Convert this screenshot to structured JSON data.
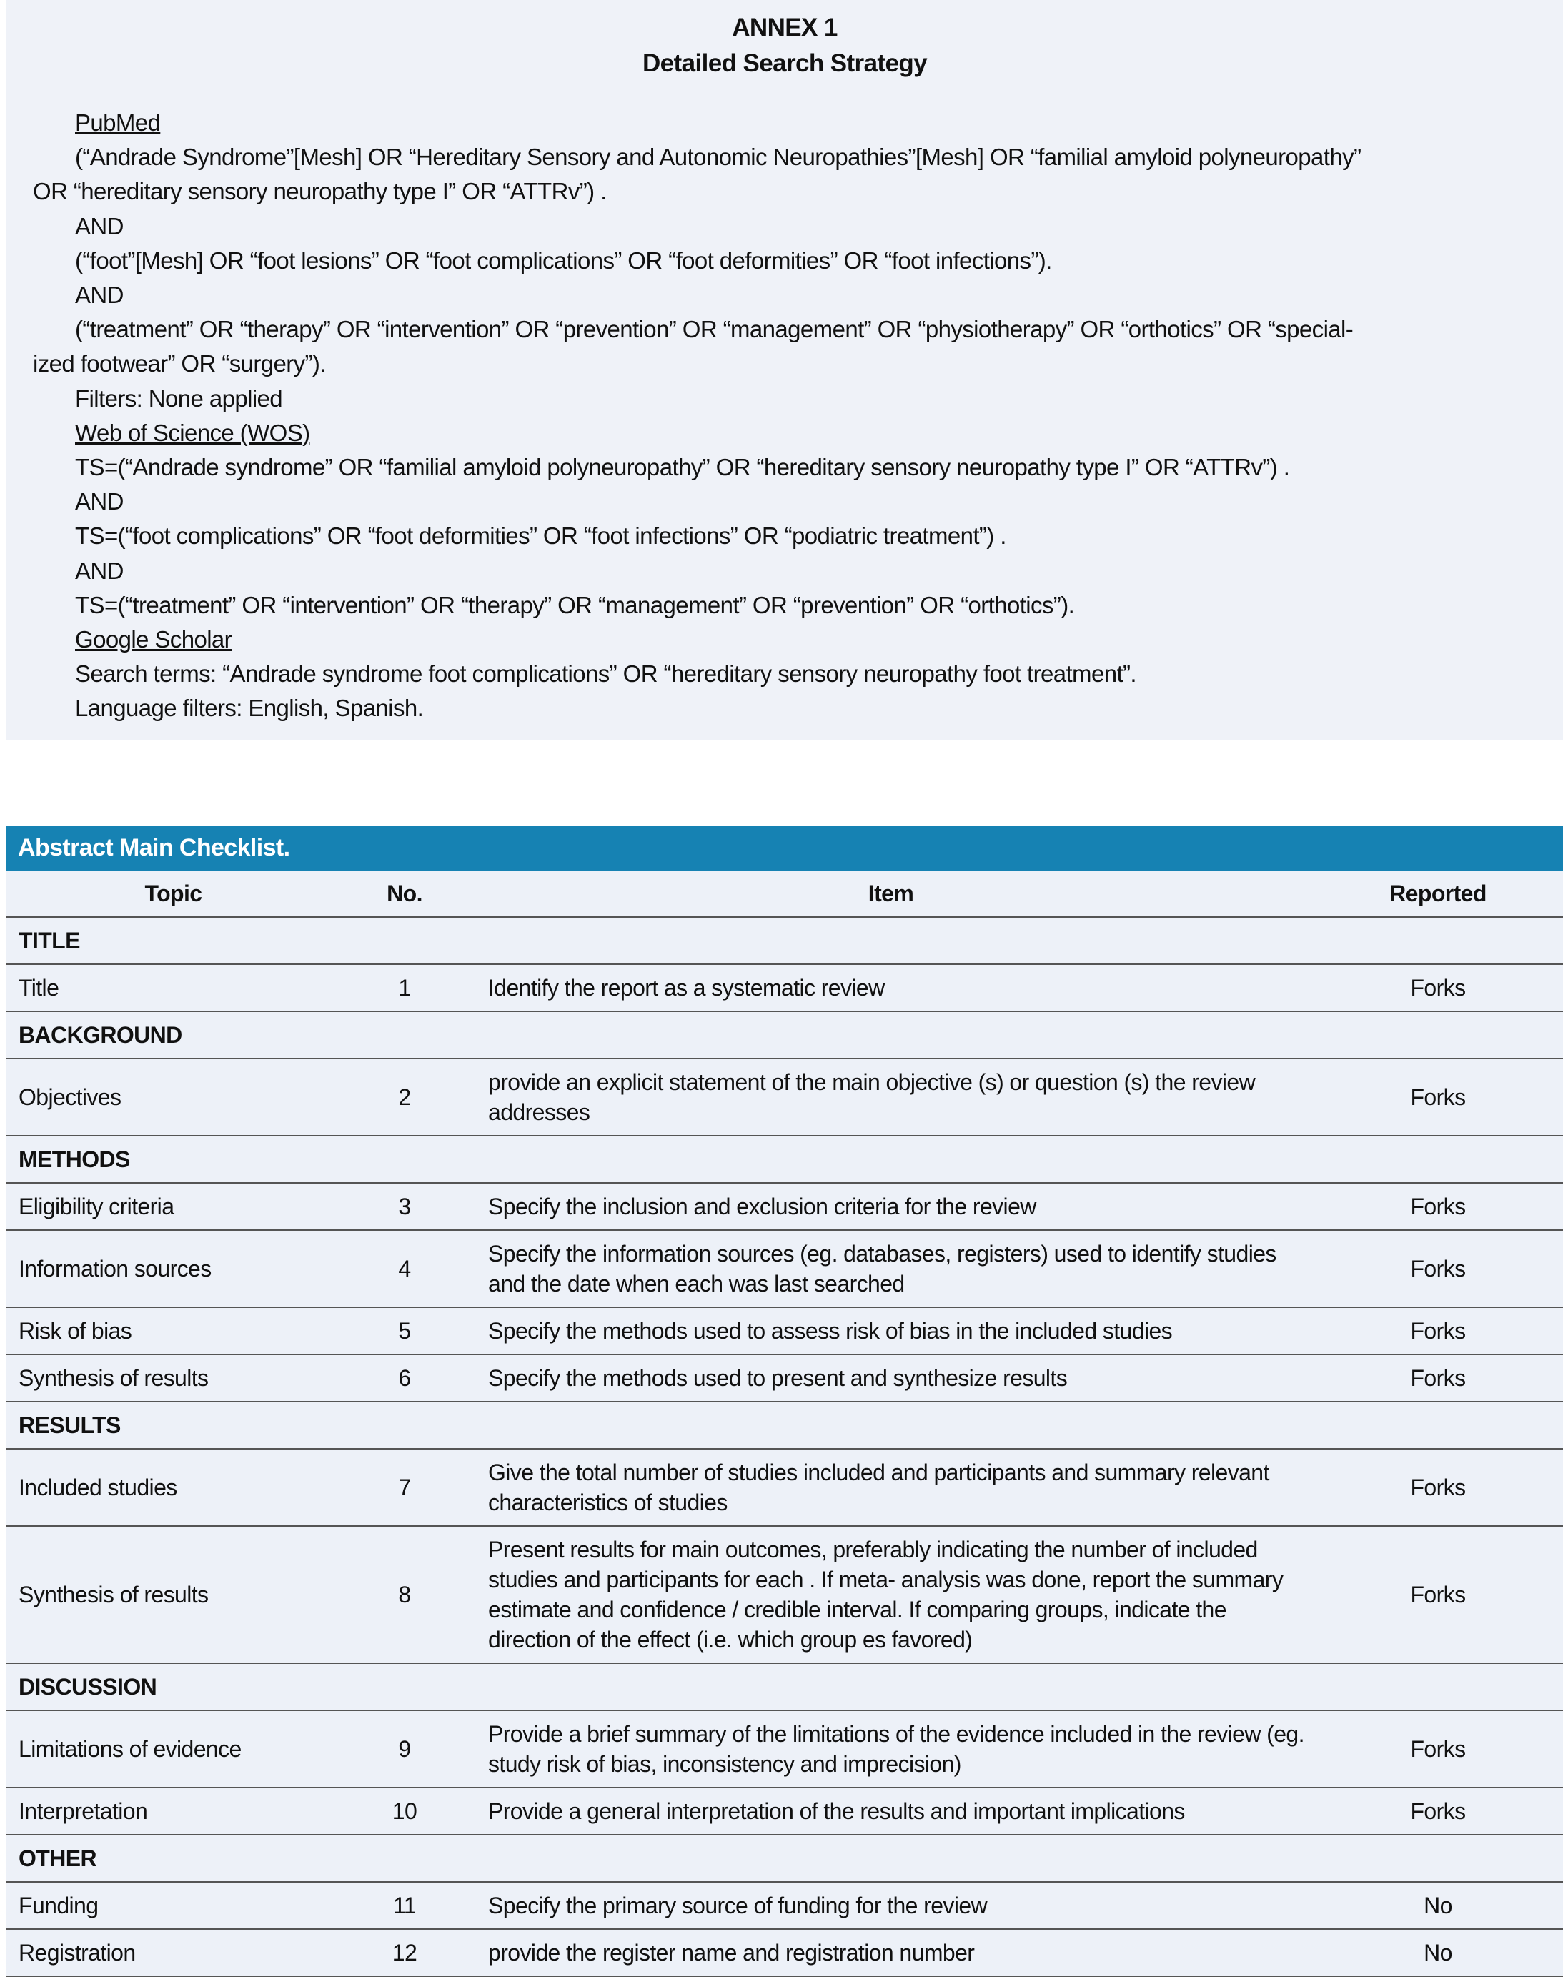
{
  "annex": {
    "title": "ANNEX 1",
    "subtitle": "Detailed Search Strategy",
    "lines": [
      {
        "t": "PubMed",
        "u": true
      },
      {
        "t": "(“Andrade Syndrome”[Mesh] OR “Hereditary Sensory and Autonomic Neuropathies”[Mesh] OR “familial amyloid polyneuropathy”"
      },
      {
        "t": "OR “hereditary sensory neuropathy type I” OR “ATTRv”) .",
        "c": true
      },
      {
        "t": "AND"
      },
      {
        "t": "(“foot”[Mesh] OR “foot lesions” OR “foot complications” OR “foot deformities” OR “foot infections”)."
      },
      {
        "t": "AND"
      },
      {
        "t": "(“treatment” OR “therapy” OR “intervention” OR “prevention” OR “management” OR “physiotherapy” OR “orthotics” OR “special-"
      },
      {
        "t": "ized footwear” OR “surgery”).",
        "c": true
      },
      {
        "t": "Filters: None applied"
      },
      {
        "t": "Web of Science (WOS)",
        "u": true
      },
      {
        "t": "TS=(“Andrade syndrome” OR “familial amyloid polyneuropathy” OR “hereditary sensory neuropathy type I” OR “ATTRv”) ."
      },
      {
        "t": "AND"
      },
      {
        "t": "TS=(“foot complications” OR “foot deformities” OR “foot infections” OR “podiatric treatment”) ."
      },
      {
        "t": "AND"
      },
      {
        "t": "TS=(“treatment” OR “intervention” OR “therapy” OR “management” OR “prevention” OR “orthotics”)."
      },
      {
        "t": "Google Scholar",
        "u": true
      },
      {
        "t": "Search terms: “Andrade syndrome foot complications” OR “hereditary sensory neuropathy foot treatment”."
      },
      {
        "t": "Language filters: English, Spanish."
      }
    ]
  },
  "checklist": {
    "caption": "Abstract Main Checklist.",
    "header_color": "#1682b3",
    "columns": [
      "Topic",
      "No.",
      "Item",
      "Reported"
    ],
    "rows": [
      {
        "section": "TITLE"
      },
      {
        "topic": "Title",
        "no": "1",
        "item": "Identify the report as a systematic review",
        "rep": "Forks"
      },
      {
        "section": "BACKGROUND"
      },
      {
        "topic": "Objectives",
        "no": "2",
        "item": "provide an explicit statement of the main objective (s) or question (s) the review addresses",
        "rep": "Forks"
      },
      {
        "section": "METHODS"
      },
      {
        "topic": "Eligibility criteria",
        "no": "3",
        "item": "Specify the inclusion and exclusion criteria for the review",
        "rep": "Forks"
      },
      {
        "topic": "Information sources",
        "no": "4",
        "item": "Specify the information sources (eg. databases, registers) used to identify studies and the date when each was last searched",
        "rep": "Forks"
      },
      {
        "topic": "Risk of bias",
        "no": "5",
        "item": "Specify the methods used to assess risk of bias in the included studies",
        "rep": "Forks"
      },
      {
        "topic": "Synthesis of results",
        "no": "6",
        "item": "Specify the methods used to present and synthesize results",
        "rep": "Forks"
      },
      {
        "section": "RESULTS"
      },
      {
        "topic": "Included studies",
        "no": "7",
        "item": "Give the total number of studies included and participants and summary relevant characteristics of studies",
        "rep": "Forks"
      },
      {
        "topic": "Synthesis of results",
        "no": "8",
        "item": "Present results for main outcomes, preferably indicating the number of included studies and participants for each . If meta- analysis was done, report the summary estimate and confidence / credible interval. If comparing groups, indicate the direction of the effect (i.e. which group es favored)",
        "rep": "Forks"
      },
      {
        "section": "DISCUSSION"
      },
      {
        "topic": "Limitations of evidence",
        "no": "9",
        "item": "Provide a brief summary of the limitations of the evidence included in the review (eg. study risk of bias, inconsistency and imprecision)",
        "rep": "Forks"
      },
      {
        "topic": "Interpretation",
        "no": "10",
        "item": "Provide a general interpretation of the results and important implications",
        "rep": "Forks"
      },
      {
        "section": "OTHER"
      },
      {
        "topic": "Funding",
        "no": "11",
        "item": "Specify the primary source of funding for the review",
        "rep": "No"
      },
      {
        "topic": "Registration",
        "no": "12",
        "item": "provide the register name and registration number",
        "rep": "No"
      }
    ]
  }
}
